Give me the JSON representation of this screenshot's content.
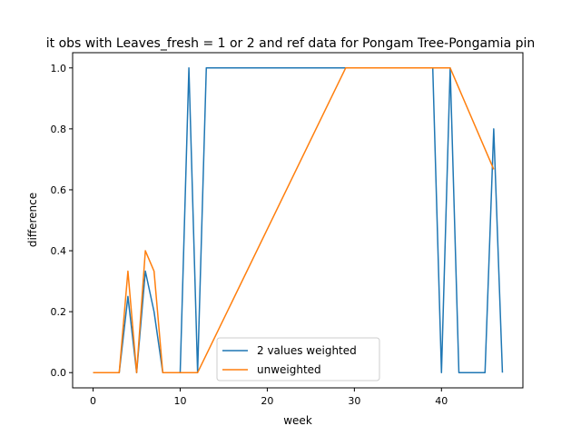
{
  "chart_data": {
    "type": "line",
    "title": "it obs with Leaves_fresh = 1 or 2 and ref data for Pongam Tree-Pongamia pin",
    "xlabel": "week",
    "ylabel": "difference",
    "xlim": [
      -2.35,
      49.35
    ],
    "ylim": [
      -0.05,
      1.05
    ],
    "xticks": [
      0,
      10,
      20,
      30,
      40
    ],
    "yticks": [
      0.0,
      0.2,
      0.4,
      0.6,
      0.8,
      1.0
    ],
    "xtick_labels": [
      "0",
      "10",
      "20",
      "30",
      "40"
    ],
    "ytick_labels": [
      "0.0",
      "0.2",
      "0.4",
      "0.6",
      "0.8",
      "1.0"
    ],
    "grid": false,
    "legend_position": "lower-center",
    "series": [
      {
        "name": "2 values weighted",
        "color": "#1f77b4",
        "x": [
          0,
          1,
          2,
          3,
          4,
          5,
          6,
          7,
          8,
          9,
          10,
          11,
          12,
          13,
          14,
          15,
          16,
          17,
          18,
          19,
          20,
          21,
          22,
          23,
          24,
          25,
          26,
          27,
          28,
          29,
          30,
          31,
          32,
          33,
          34,
          35,
          36,
          37,
          38,
          39,
          40,
          41,
          42,
          43,
          44,
          45,
          46,
          47
        ],
        "y": [
          0,
          0,
          0,
          0,
          0.25,
          0,
          0.333,
          0.2,
          0,
          0,
          0,
          1.0,
          0,
          1.0,
          1.0,
          1.0,
          1.0,
          1.0,
          1.0,
          1.0,
          1.0,
          1.0,
          1.0,
          1.0,
          1.0,
          1.0,
          1.0,
          1.0,
          1.0,
          1.0,
          1.0,
          1.0,
          1.0,
          1.0,
          1.0,
          1.0,
          1.0,
          1.0,
          1.0,
          1.0,
          0,
          1.0,
          0,
          0,
          0,
          0,
          0.8,
          0
        ]
      },
      {
        "name": "unweighted",
        "color": "#ff7f0e",
        "x": [
          0,
          1,
          2,
          3,
          4,
          5,
          6,
          7,
          8,
          9,
          10,
          11,
          12,
          29,
          30,
          31,
          32,
          33,
          34,
          35,
          36,
          37,
          38,
          39,
          40,
          41,
          46
        ],
        "y": [
          0,
          0,
          0,
          0,
          0.333,
          0,
          0.4,
          0.333,
          0,
          0,
          0,
          0,
          0,
          1.0,
          1.0,
          1.0,
          1.0,
          1.0,
          1.0,
          1.0,
          1.0,
          1.0,
          1.0,
          1.0,
          1.0,
          1.0,
          0.667
        ]
      }
    ]
  }
}
